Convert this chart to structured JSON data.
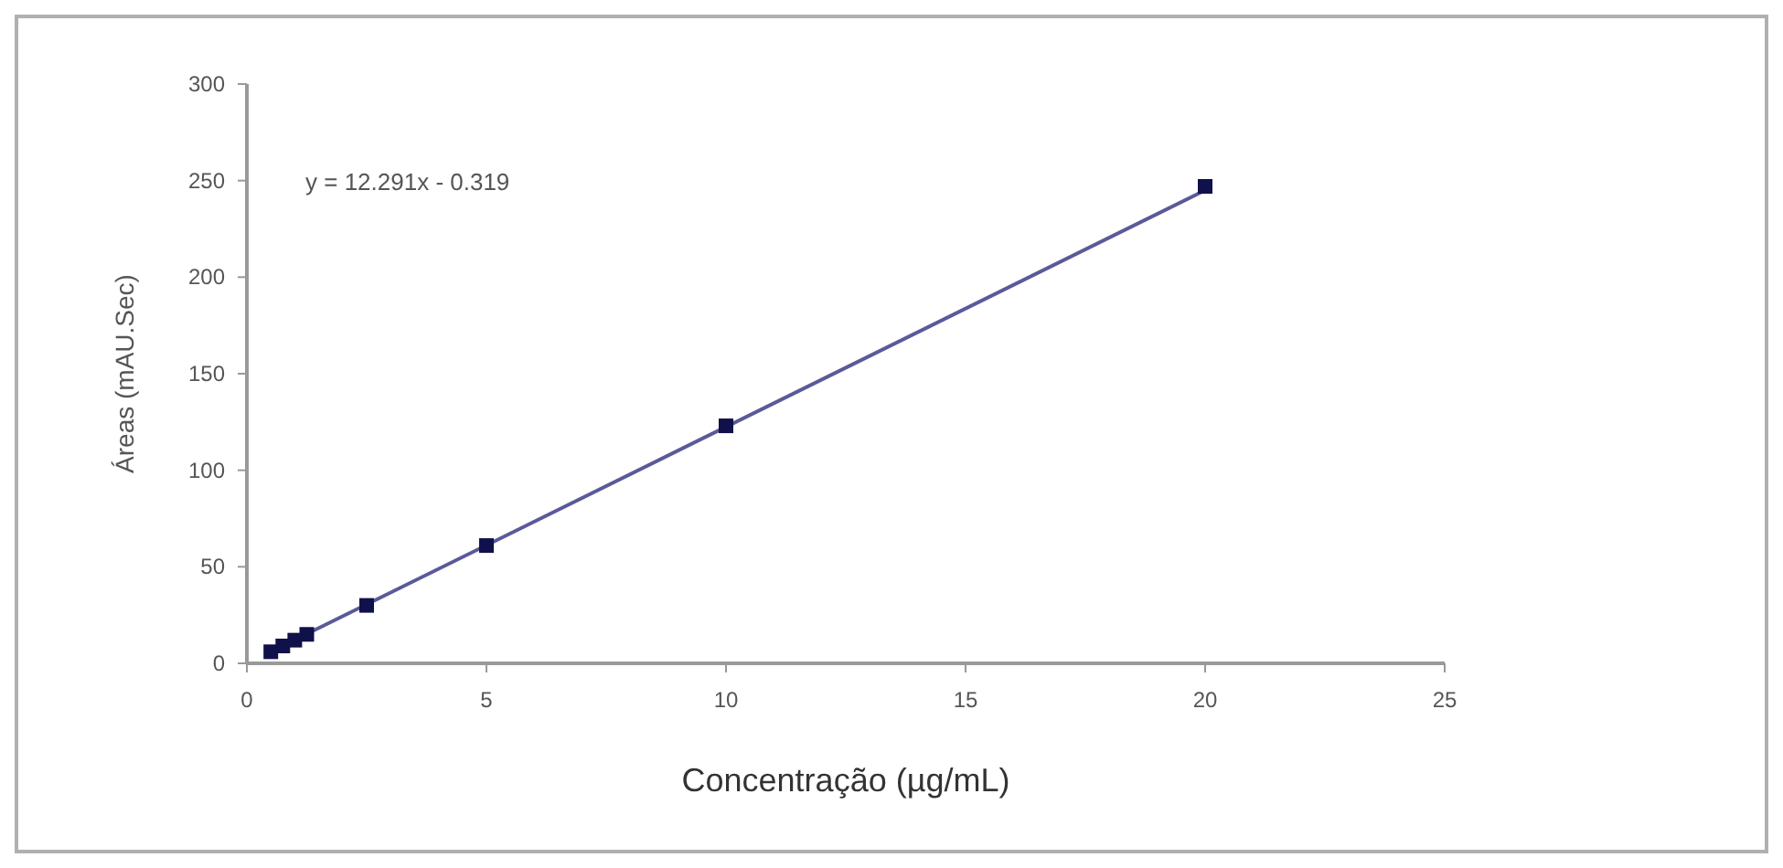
{
  "chart_data": {
    "type": "scatter",
    "xlabel": "Concentração  (µg/mL)",
    "ylabel": "Áreas (mAU.Sec)",
    "annotations": [
      "y = 12.291x - 0.319"
    ],
    "xlim": [
      0,
      25
    ],
    "xticks": [
      0,
      5,
      10,
      15,
      20,
      25
    ],
    "ylim": [
      0,
      300
    ],
    "yticks": [
      0,
      50,
      100,
      150,
      200,
      250,
      300
    ],
    "grid": false,
    "marker": "square",
    "series": [
      {
        "type": "line",
        "color": "#5a5a9a",
        "x": [
          0.5,
          20
        ],
        "values": [
          6,
          245
        ],
        "marker": "none",
        "line_style": "solid"
      },
      {
        "color": "#10104a",
        "x": [
          0.5,
          0.75,
          1,
          1.25,
          2.5,
          5,
          10,
          20
        ],
        "values": [
          6,
          9,
          12,
          15,
          30,
          61,
          123,
          247
        ]
      }
    ]
  }
}
